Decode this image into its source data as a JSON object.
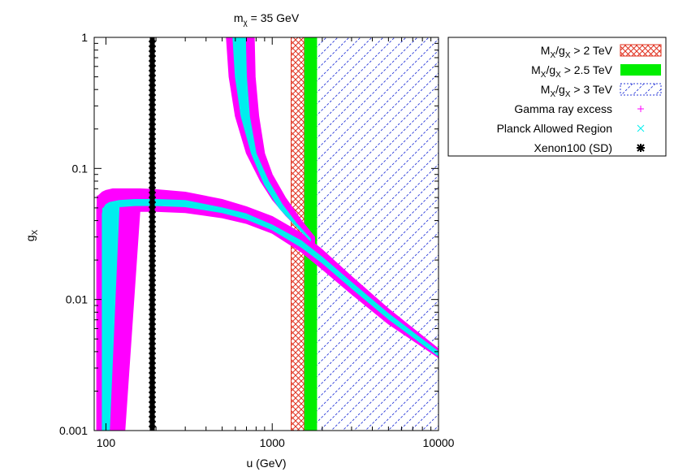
{
  "chart_data": {
    "type": "region",
    "title_main": "m",
    "title_sub": "χ",
    "title_rest": " = 35 GeV",
    "xlabel": "u (GeV)",
    "ylabel_main": "g",
    "ylabel_sub": "X",
    "x_scale": "log",
    "y_scale": "log",
    "xlim": [
      85,
      10000
    ],
    "ylim": [
      0.001,
      1
    ],
    "x_ticks": [
      {
        "value": 100,
        "label": "100"
      },
      {
        "value": 1000,
        "label": "1000"
      },
      {
        "value": 10000,
        "label": "10000"
      }
    ],
    "y_ticks": [
      {
        "value": 1,
        "label": "1"
      },
      {
        "value": 0.1,
        "label": "0.1"
      },
      {
        "value": 0.01,
        "label": "0.01"
      },
      {
        "value": 0.001,
        "label": "0.001"
      }
    ],
    "exclusion_bands": [
      {
        "name": "MX/gX > 2 TeV",
        "x_min": 1300,
        "x_max": 1560,
        "color": "#e0301e",
        "pattern": "crosshatch"
      },
      {
        "name": "MX/gX > 2.5 TeV",
        "x_min": 1560,
        "x_max": 1860,
        "color": "#00ee00",
        "pattern": "solid"
      },
      {
        "name": "MX/gX > 3 TeV",
        "x_min": 1860,
        "x_max": 10000,
        "color": "#2a3ad8",
        "pattern": "diagonal"
      }
    ],
    "xenon_line": {
      "name": "Xenon100 (SD)",
      "x": 190,
      "color": "#000000"
    },
    "regions": [
      {
        "name": "Gamma ray excess",
        "color": "#ff00ff",
        "low_branch": {
          "x": [
            88,
            90,
            95,
            100,
            110,
            130,
            160,
            200,
            300,
            500,
            700,
            1000,
            1500,
            2000,
            3000,
            5000,
            10000
          ],
          "y_upper": [
            0.05,
            0.062,
            0.066,
            0.068,
            0.07,
            0.07,
            0.07,
            0.069,
            0.066,
            0.058,
            0.051,
            0.043,
            0.032,
            0.024,
            0.015,
            0.0085,
            0.0042
          ],
          "y_lower": [
            0.001,
            0.001,
            0.001,
            0.001,
            0.001,
            0.001,
            0.047,
            0.047,
            0.046,
            0.042,
            0.038,
            0.032,
            0.023,
            0.017,
            0.011,
            0.0065,
            0.0036
          ],
          "stem_x_range": [
            88,
            125
          ]
        },
        "high_branch": {
          "x_left": [
            530,
            550,
            600,
            700,
            850,
            1000,
            1200,
            1500,
            1800
          ],
          "y_left": [
            1,
            0.5,
            0.25,
            0.13,
            0.08,
            0.058,
            0.044,
            0.033,
            0.027
          ],
          "x_right": [
            780,
            790,
            830,
            900,
            1000,
            1200,
            1500,
            1800
          ],
          "y_right": [
            1,
            0.5,
            0.25,
            0.13,
            0.09,
            0.06,
            0.04,
            0.03
          ]
        }
      },
      {
        "name": "Planck Allowed Region",
        "color": "#00eeee",
        "low_branch": {
          "x": [
            95,
            97,
            100,
            105,
            120,
            150,
            200,
            300,
            500,
            700,
            1000,
            1500,
            2000,
            3000,
            5000,
            10000
          ],
          "y_upper": [
            0.045,
            0.05,
            0.053,
            0.055,
            0.057,
            0.058,
            0.058,
            0.057,
            0.05,
            0.045,
            0.037,
            0.028,
            0.021,
            0.0135,
            0.0078,
            0.004
          ],
          "y_lower": [
            0.001,
            0.001,
            0.001,
            0.001,
            0.051,
            0.052,
            0.052,
            0.051,
            0.046,
            0.041,
            0.034,
            0.025,
            0.019,
            0.0122,
            0.0071,
            0.0037
          ],
          "stem_x_range": [
            95,
            103
          ]
        },
        "high_branch": {
          "x_left": [
            580,
            600,
            650,
            750,
            900,
            1100,
            1400,
            1700
          ],
          "y_left": [
            1,
            0.5,
            0.25,
            0.13,
            0.075,
            0.05,
            0.036,
            0.028
          ],
          "x_right": [
            690,
            700,
            730,
            800,
            950,
            1150,
            1400,
            1700
          ],
          "y_right": [
            1,
            0.5,
            0.25,
            0.13,
            0.08,
            0.053,
            0.038,
            0.029
          ]
        }
      }
    ],
    "legend_position": "top-right, outside plot",
    "legend": [
      {
        "pre": "M",
        "sub1": "X",
        "mid": "/g",
        "sub2": "X",
        "post": " > 2 TeV",
        "swatch": "crosshatch",
        "color": "#e0301e"
      },
      {
        "pre": "M",
        "sub1": "X",
        "mid": "/g",
        "sub2": "X",
        "post": " > 2.5 TeV",
        "swatch": "solid",
        "color": "#00ee00"
      },
      {
        "pre": "M",
        "sub1": "X",
        "mid": "/g",
        "sub2": "X",
        "post": " > 3 TeV",
        "swatch": "diagonal",
        "color": "#2a3ad8"
      },
      {
        "text": "Gamma ray excess",
        "swatch": "plus",
        "color": "#ff00ff"
      },
      {
        "text": "Planck Allowed Region",
        "swatch": "cross",
        "color": "#00eeee"
      },
      {
        "text": "Xenon100 (SD)",
        "swatch": "star",
        "color": "#000000"
      }
    ]
  }
}
